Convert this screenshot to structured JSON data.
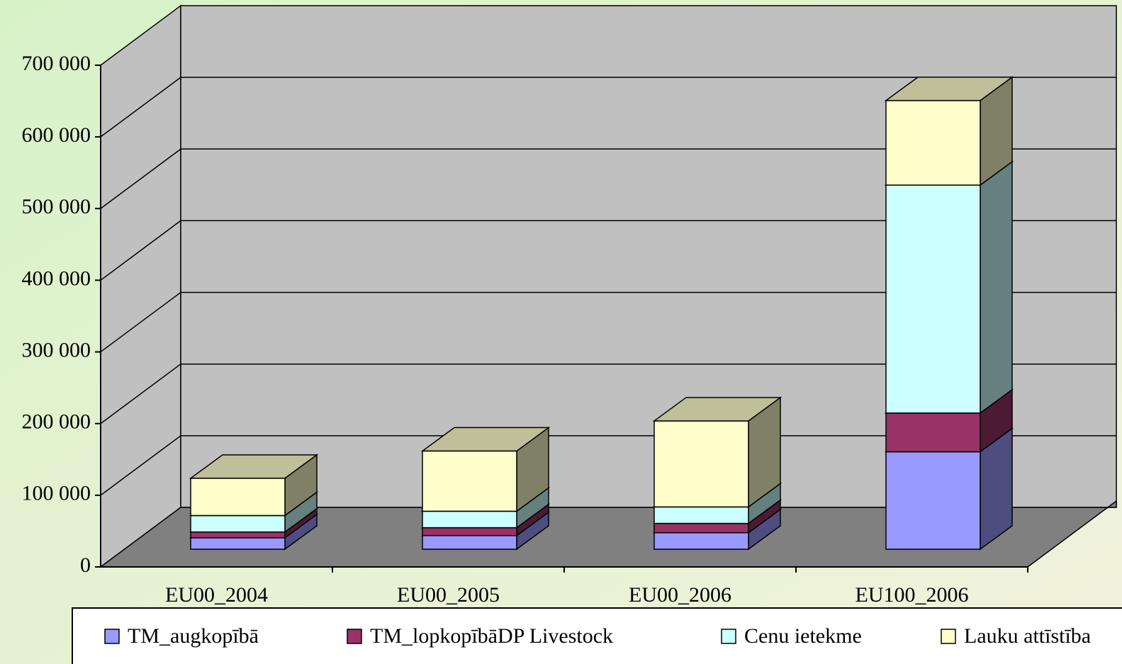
{
  "chart_data": {
    "type": "bar",
    "stacked": true,
    "categories": [
      "EU00_2004",
      "EU00_2005",
      "EU00_2006",
      "EU100_2006"
    ],
    "series": [
      {
        "name": "TM_augkopībā",
        "color": "#9999ff",
        "values": [
          16000,
          19000,
          23000,
          136000
        ]
      },
      {
        "name": "TM_lopkopībāDP Livestock",
        "color": "#993366",
        "values": [
          8000,
          11000,
          13000,
          54000
        ]
      },
      {
        "name": "Cenu ietekme",
        "color": "#ccffff",
        "values": [
          23000,
          23000,
          23000,
          318000
        ]
      },
      {
        "name": "Lauku attīstība",
        "color": "#ffffcc",
        "values": [
          52000,
          84000,
          120000,
          118000
        ]
      }
    ],
    "ylim": [
      0,
      700000
    ],
    "yticks": [
      0,
      {
        "value": 100000,
        "label": "100 000"
      },
      {
        "value": 200000,
        "label": "200 000"
      },
      {
        "value": 300000,
        "label": "300 000"
      },
      {
        "value": 400000,
        "label": "400 000"
      },
      {
        "value": 500000,
        "label": "500 000"
      },
      {
        "value": 600000,
        "label": "600 000"
      },
      {
        "value": 700000,
        "label": "700 000"
      }
    ],
    "grid": true,
    "legend": "bottom"
  }
}
